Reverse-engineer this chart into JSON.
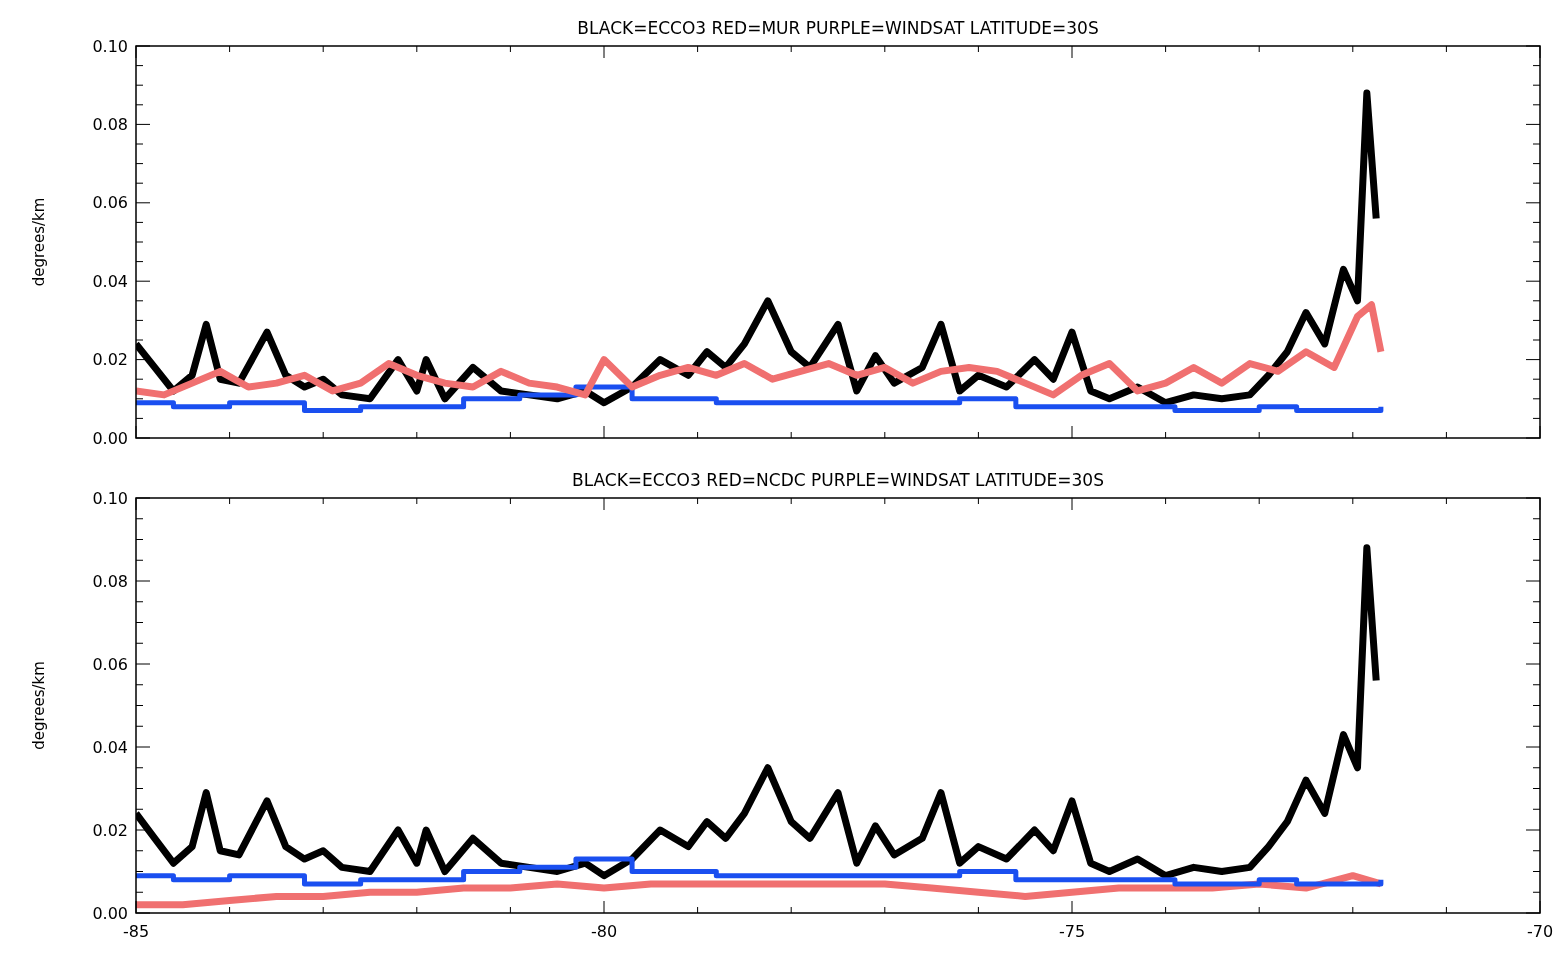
{
  "chart_data": [
    {
      "type": "line",
      "title": "BLACK=ECCO3 RED=MUR PURPLE=WINDSAT LATITUDE=30S",
      "ylabel": "degrees/km",
      "xlim": [
        -85,
        -70
      ],
      "xticks": [
        -85,
        -80,
        -75,
        -70
      ],
      "ylim": [
        0,
        0.1
      ],
      "yticks": [
        {
          "value": 0,
          "label": "0.00"
        },
        {
          "value": 0.02,
          "label": "0.02"
        },
        {
          "value": 0.04,
          "label": "0.04"
        },
        {
          "value": 0.06,
          "label": "0.06"
        },
        {
          "value": 0.08,
          "label": "0.08"
        },
        {
          "value": 0.1,
          "label": "0.10"
        }
      ],
      "tick_labels": "y",
      "grid": false,
      "series": [
        {
          "color": "#000000",
          "x": [
            -85,
            -84.8,
            -84.6,
            -84.4,
            -84.25,
            -84.1,
            -83.9,
            -83.6,
            -83.4,
            -83.2,
            -83.0,
            -82.8,
            -82.5,
            -82.2,
            -82.0,
            -81.9,
            -81.7,
            -81.4,
            -81.1,
            -80.8,
            -80.5,
            -80.2,
            -80.0,
            -79.7,
            -79.4,
            -79.1,
            -78.9,
            -78.7,
            -78.5,
            -78.25,
            -78.0,
            -77.8,
            -77.5,
            -77.3,
            -77.1,
            -76.9,
            -76.6,
            -76.4,
            -76.2,
            -76.0,
            -75.7,
            -75.4,
            -75.2,
            -75.0,
            -74.8,
            -74.6,
            -74.3,
            -74.0,
            -73.7,
            -73.4,
            -73.1,
            -72.9,
            -72.7,
            -72.5,
            -72.3,
            -72.1,
            -71.95,
            -71.85,
            -71.75
          ],
          "values": [
            0.024,
            0.018,
            0.012,
            0.016,
            0.029,
            0.015,
            0.014,
            0.027,
            0.016,
            0.013,
            0.015,
            0.011,
            0.01,
            0.02,
            0.012,
            0.02,
            0.01,
            0.018,
            0.012,
            0.011,
            0.01,
            0.012,
            0.009,
            0.013,
            0.02,
            0.016,
            0.022,
            0.018,
            0.024,
            0.035,
            0.022,
            0.018,
            0.029,
            0.012,
            0.021,
            0.014,
            0.018,
            0.029,
            0.012,
            0.016,
            0.013,
            0.02,
            0.015,
            0.027,
            0.012,
            0.01,
            0.013,
            0.009,
            0.011,
            0.01,
            0.011,
            0.016,
            0.022,
            0.032,
            0.024,
            0.043,
            0.035,
            0.088,
            0.056
          ]
        },
        {
          "type": "step",
          "color": "#1a4ff0",
          "x": [
            -85,
            -84.6,
            -84.0,
            -83.2,
            -82.6,
            -81.5,
            -80.9,
            -80.3,
            -79.7,
            -78.8,
            -77.8,
            -76.8,
            -76.2,
            -75.6,
            -74.6,
            -73.9,
            -73.0,
            -72.6,
            -71.7
          ],
          "values": [
            0.009,
            0.008,
            0.009,
            0.007,
            0.008,
            0.01,
            0.011,
            0.013,
            0.01,
            0.009,
            0.009,
            0.009,
            0.01,
            0.008,
            0.008,
            0.007,
            0.008,
            0.007,
            0.008
          ]
        },
        {
          "color": "#f07070",
          "x": [
            -85,
            -84.7,
            -84.4,
            -84.1,
            -83.8,
            -83.5,
            -83.2,
            -82.9,
            -82.6,
            -82.3,
            -82.0,
            -81.7,
            -81.4,
            -81.1,
            -80.8,
            -80.5,
            -80.2,
            -80.0,
            -79.7,
            -79.4,
            -79.1,
            -78.8,
            -78.5,
            -78.2,
            -77.9,
            -77.6,
            -77.3,
            -77.0,
            -76.7,
            -76.4,
            -76.1,
            -75.8,
            -75.5,
            -75.2,
            -74.9,
            -74.6,
            -74.3,
            -74.0,
            -73.7,
            -73.4,
            -73.1,
            -72.8,
            -72.5,
            -72.2,
            -71.95,
            -71.8,
            -71.7
          ],
          "values": [
            0.012,
            0.011,
            0.014,
            0.017,
            0.013,
            0.014,
            0.016,
            0.012,
            0.014,
            0.019,
            0.016,
            0.014,
            0.013,
            0.017,
            0.014,
            0.013,
            0.011,
            0.02,
            0.013,
            0.016,
            0.018,
            0.016,
            0.019,
            0.015,
            0.017,
            0.019,
            0.016,
            0.018,
            0.014,
            0.017,
            0.018,
            0.017,
            0.014,
            0.011,
            0.016,
            0.019,
            0.012,
            0.014,
            0.018,
            0.014,
            0.019,
            0.017,
            0.022,
            0.018,
            0.031,
            0.034,
            0.022
          ]
        }
      ]
    },
    {
      "type": "line",
      "title": "BLACK=ECCO3 RED=NCDC PURPLE=WINDSAT LATITUDE=30S",
      "ylabel": "degrees/km",
      "xlim": [
        -85,
        -70
      ],
      "xticks": [
        -85,
        -80,
        -75,
        -70
      ],
      "ylim": [
        0,
        0.1
      ],
      "yticks": [
        {
          "value": 0,
          "label": "0.00"
        },
        {
          "value": 0.02,
          "label": "0.02"
        },
        {
          "value": 0.04,
          "label": "0.04"
        },
        {
          "value": 0.06,
          "label": "0.06"
        },
        {
          "value": 0.08,
          "label": "0.08"
        },
        {
          "value": 0.1,
          "label": "0.10"
        }
      ],
      "grid": false,
      "series": [
        {
          "color": "#000000",
          "x": [
            -85,
            -84.8,
            -84.6,
            -84.4,
            -84.25,
            -84.1,
            -83.9,
            -83.6,
            -83.4,
            -83.2,
            -83.0,
            -82.8,
            -82.5,
            -82.2,
            -82.0,
            -81.9,
            -81.7,
            -81.4,
            -81.1,
            -80.8,
            -80.5,
            -80.2,
            -80.0,
            -79.7,
            -79.4,
            -79.1,
            -78.9,
            -78.7,
            -78.5,
            -78.25,
            -78.0,
            -77.8,
            -77.5,
            -77.3,
            -77.1,
            -76.9,
            -76.6,
            -76.4,
            -76.2,
            -76.0,
            -75.7,
            -75.4,
            -75.2,
            -75.0,
            -74.8,
            -74.6,
            -74.3,
            -74.0,
            -73.7,
            -73.4,
            -73.1,
            -72.9,
            -72.7,
            -72.5,
            -72.3,
            -72.1,
            -71.95,
            -71.85,
            -71.75
          ],
          "values": [
            0.024,
            0.018,
            0.012,
            0.016,
            0.029,
            0.015,
            0.014,
            0.027,
            0.016,
            0.013,
            0.015,
            0.011,
            0.01,
            0.02,
            0.012,
            0.02,
            0.01,
            0.018,
            0.012,
            0.011,
            0.01,
            0.012,
            0.009,
            0.013,
            0.02,
            0.016,
            0.022,
            0.018,
            0.024,
            0.035,
            0.022,
            0.018,
            0.029,
            0.012,
            0.021,
            0.014,
            0.018,
            0.029,
            0.012,
            0.016,
            0.013,
            0.02,
            0.015,
            0.027,
            0.012,
            0.01,
            0.013,
            0.009,
            0.011,
            0.01,
            0.011,
            0.016,
            0.022,
            0.032,
            0.024,
            0.043,
            0.035,
            0.088,
            0.056
          ]
        },
        {
          "color": "#f07070",
          "x": [
            -85,
            -84.5,
            -84.0,
            -83.5,
            -83.0,
            -82.5,
            -82.0,
            -81.5,
            -81.0,
            -80.5,
            -80.0,
            -79.5,
            -79.0,
            -78.5,
            -78.0,
            -77.5,
            -77.0,
            -76.5,
            -76.0,
            -75.5,
            -75.0,
            -74.5,
            -74.0,
            -73.5,
            -73.0,
            -72.5,
            -72.0,
            -71.7
          ],
          "values": [
            0.002,
            0.002,
            0.003,
            0.004,
            0.004,
            0.005,
            0.005,
            0.006,
            0.006,
            0.007,
            0.006,
            0.007,
            0.007,
            0.007,
            0.007,
            0.007,
            0.007,
            0.006,
            0.005,
            0.004,
            0.005,
            0.006,
            0.006,
            0.006,
            0.007,
            0.006,
            0.009,
            0.007
          ]
        },
        {
          "type": "step",
          "color": "#1a4ff0",
          "x": [
            -85,
            -84.6,
            -84.0,
            -83.2,
            -82.6,
            -81.5,
            -80.9,
            -80.3,
            -79.7,
            -78.8,
            -77.8,
            -76.8,
            -76.2,
            -75.6,
            -74.6,
            -73.9,
            -73.0,
            -72.6,
            -71.7
          ],
          "values": [
            0.009,
            0.008,
            0.009,
            0.007,
            0.008,
            0.01,
            0.011,
            0.013,
            0.01,
            0.009,
            0.009,
            0.009,
            0.01,
            0.008,
            0.008,
            0.007,
            0.008,
            0.007,
            0.008
          ]
        }
      ]
    }
  ]
}
